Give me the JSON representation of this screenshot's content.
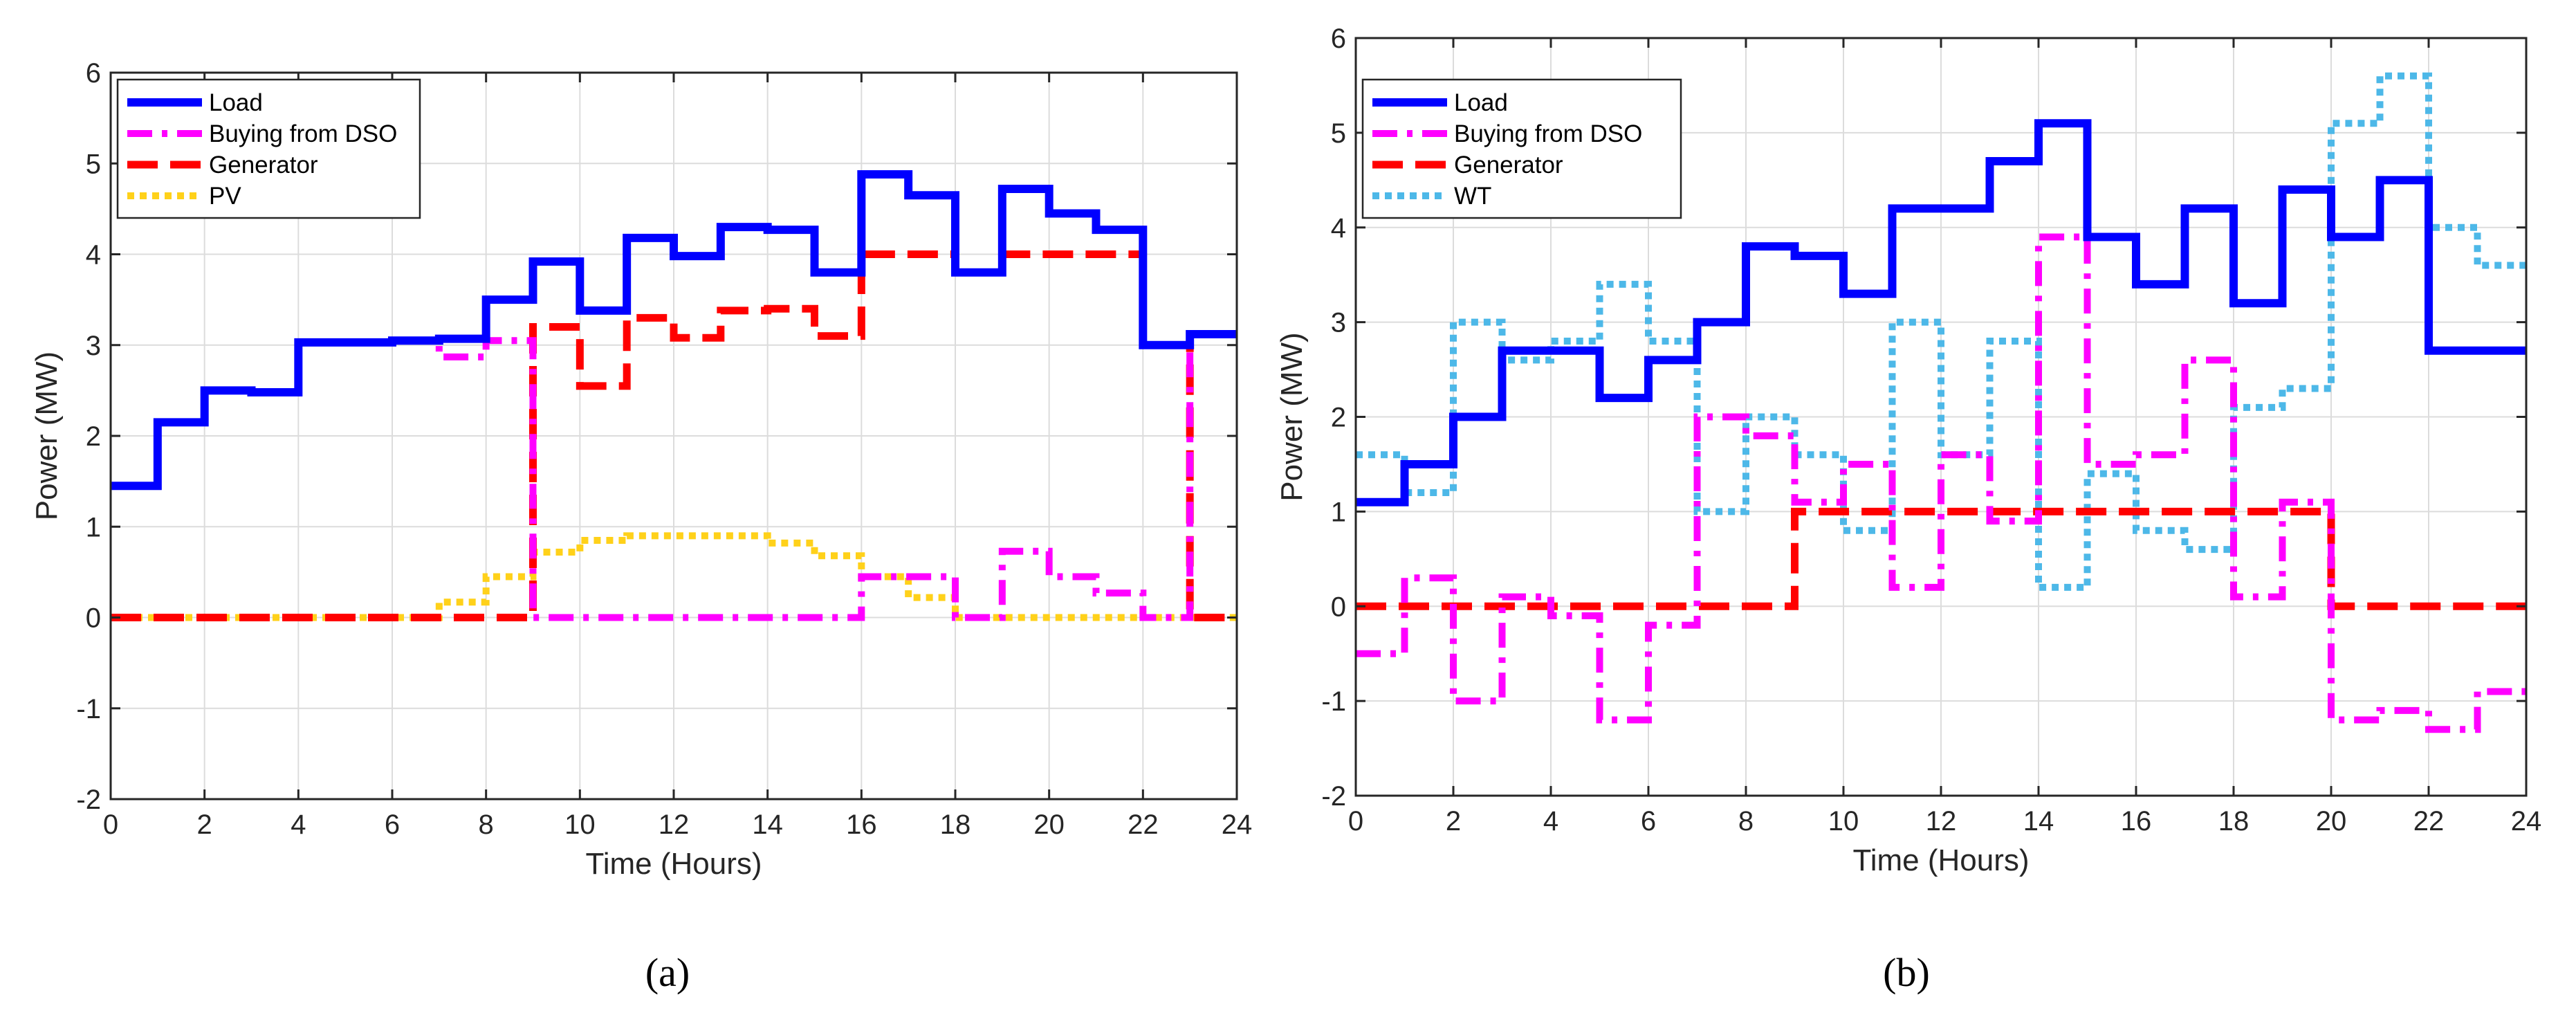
{
  "chart_data": [
    {
      "type": "line",
      "panel_label": "(a)",
      "xlabel": "Time (Hours)",
      "ylabel": "Power (MW)",
      "xlim": [
        0,
        24
      ],
      "ylim": [
        -2,
        6
      ],
      "xticks": [
        0,
        2,
        4,
        6,
        8,
        10,
        12,
        14,
        16,
        18,
        20,
        22,
        24
      ],
      "yticks": [
        -2,
        -1,
        0,
        1,
        2,
        3,
        4,
        5,
        6
      ],
      "grid": true,
      "legend_position": "top-left",
      "series": [
        {
          "name": "Load",
          "color": "#0000ff",
          "style": "solid",
          "values": [
            1.45,
            2.15,
            2.5,
            2.48,
            3.03,
            3.03,
            3.05,
            3.07,
            3.5,
            3.92,
            3.38,
            4.18,
            3.98,
            4.3,
            4.27,
            3.8,
            4.88,
            4.65,
            3.8,
            4.72,
            4.45,
            4.27,
            3.0,
            3.12
          ]
        },
        {
          "name": "Buying from DSO",
          "color": "#ff00ff",
          "style": "dashdot",
          "values": [
            1.45,
            2.15,
            2.5,
            2.48,
            3.03,
            3.03,
            3.05,
            2.87,
            3.05,
            0.0,
            0.0,
            0.0,
            0.0,
            0.0,
            0.0,
            0.0,
            0.45,
            0.45,
            0.0,
            0.73,
            0.45,
            0.27,
            0.0,
            3.12
          ]
        },
        {
          "name": "Generator",
          "color": "#ff0000",
          "style": "dashed",
          "values": [
            0.0,
            0.0,
            0.0,
            0.0,
            0.0,
            0.0,
            0.0,
            0.0,
            0.0,
            3.2,
            2.55,
            3.3,
            3.08,
            3.38,
            3.4,
            3.1,
            4.0,
            4.0,
            3.8,
            4.0,
            4.0,
            4.0,
            3.0,
            0.0
          ]
        },
        {
          "name": "PV",
          "color": "#ffd11a",
          "style": "dotted",
          "values": [
            0.0,
            0.0,
            0.0,
            0.0,
            0.0,
            0.0,
            0.0,
            0.17,
            0.45,
            0.72,
            0.85,
            0.9,
            0.9,
            0.9,
            0.82,
            0.68,
            0.45,
            0.22,
            0.0,
            0.0,
            0.0,
            0.0,
            0.0,
            0.0
          ]
        }
      ]
    },
    {
      "type": "line",
      "panel_label": "(b)",
      "xlabel": "Time (Hours)",
      "ylabel": "Power (MW)",
      "xlim": [
        0,
        24
      ],
      "ylim": [
        -2,
        6
      ],
      "xticks": [
        0,
        2,
        4,
        6,
        8,
        10,
        12,
        14,
        16,
        18,
        20,
        22,
        24
      ],
      "yticks": [
        -2,
        -1,
        0,
        1,
        2,
        3,
        4,
        5,
        6
      ],
      "grid": true,
      "legend_position": "top-left",
      "series": [
        {
          "name": "Load",
          "color": "#0000ff",
          "style": "solid",
          "values": [
            1.1,
            1.5,
            2.0,
            2.7,
            2.7,
            2.2,
            2.6,
            3.0,
            3.8,
            3.7,
            3.3,
            4.2,
            4.2,
            4.7,
            5.1,
            3.9,
            3.4,
            4.2,
            3.2,
            4.4,
            3.9,
            4.5,
            2.7,
            2.7
          ]
        },
        {
          "name": "Buying from DSO",
          "color": "#ff00ff",
          "style": "dashdot",
          "values": [
            -0.5,
            0.3,
            -1.0,
            0.1,
            -0.1,
            -1.2,
            -0.2,
            2.0,
            1.8,
            1.1,
            1.5,
            0.2,
            1.6,
            0.9,
            3.9,
            1.5,
            1.6,
            2.6,
            0.1,
            1.1,
            -1.2,
            -1.1,
            -1.3,
            -0.9
          ]
        },
        {
          "name": "Generator",
          "color": "#ff0000",
          "style": "dashed",
          "values": [
            0.0,
            0.0,
            0.0,
            0.0,
            0.0,
            0.0,
            0.0,
            0.0,
            0.0,
            1.0,
            1.0,
            1.0,
            1.0,
            1.0,
            1.0,
            1.0,
            1.0,
            1.0,
            1.0,
            1.0,
            0.0,
            0.0,
            0.0,
            0.0
          ]
        },
        {
          "name": "WT",
          "color": "#4db8e8",
          "style": "dotted",
          "values": [
            1.6,
            1.2,
            3.0,
            2.6,
            2.8,
            3.4,
            2.8,
            1.0,
            2.0,
            1.6,
            0.8,
            3.0,
            1.6,
            2.8,
            0.2,
            1.4,
            0.8,
            0.6,
            2.1,
            2.3,
            5.1,
            5.6,
            4.0,
            3.6
          ]
        }
      ]
    }
  ]
}
